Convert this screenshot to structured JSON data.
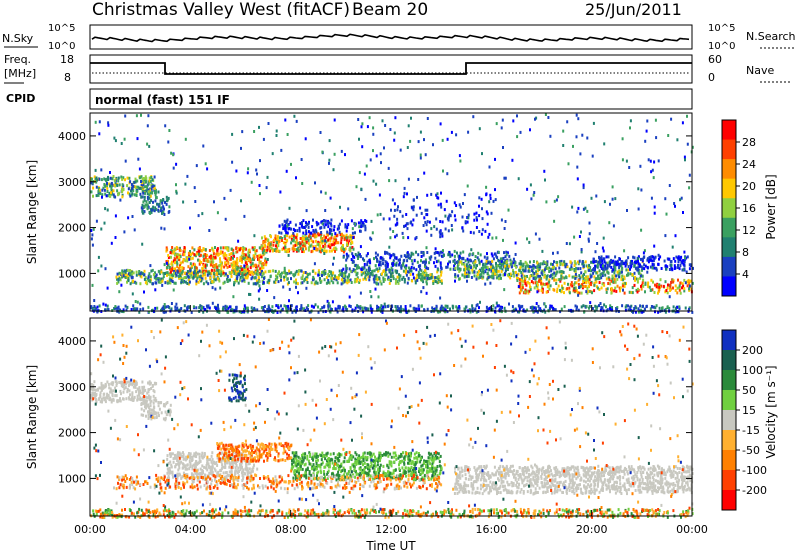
{
  "header": {
    "title": "Christmas Valley West (fitACF)",
    "beam": "Beam 20",
    "date": "25/Jun/2011"
  },
  "top_panels": {
    "nsky_label": "N.Sky",
    "nsky_ticks": [
      "10^5",
      "10^0"
    ],
    "nsearch_label": "N.Search",
    "nsearch_ticks": [
      "10^5",
      "10^0"
    ],
    "freq_label_1": "Freq.",
    "freq_label_2": "[MHz]",
    "freq_ticks": [
      "18",
      "8"
    ],
    "nave_label": "Nave",
    "nave_ticks": [
      "60",
      "0"
    ],
    "cpid_label": "CPID",
    "cpid_text": "normal (fast) 151 IF"
  },
  "chart_data": [
    {
      "type": "heatmap",
      "name": "power",
      "ylabel": "Slant Range [km]",
      "xlabel": "",
      "ylim": [
        180,
        4500
      ],
      "yticks": [
        "4000",
        "3000",
        "2000",
        "1000"
      ],
      "colorbar_label": "Power [dB]",
      "colorbar_ticks": [
        "28",
        "24",
        "20",
        "16",
        "12",
        "8",
        "4"
      ],
      "colorbar_colors": [
        "#ff0000",
        "#ff4000",
        "#ff8c00",
        "#ffc800",
        "#90d040",
        "#3aa060",
        "#208070",
        "#1a40c0",
        "#0000ff"
      ]
    },
    {
      "type": "heatmap",
      "name": "velocity",
      "ylabel": "Slant Range [km]",
      "xlabel": "Time UT",
      "ylim": [
        180,
        4500
      ],
      "yticks": [
        "4000",
        "3000",
        "2000",
        "1000"
      ],
      "xticks": [
        "00:00",
        "04:00",
        "08:00",
        "12:00",
        "16:00",
        "20:00",
        "00:00"
      ],
      "colorbar_label": "Velocity [m s⁻¹]",
      "colorbar_ticks": [
        "200",
        "100",
        "50",
        "15",
        "-15",
        "-50",
        "-100",
        "-200"
      ],
      "colorbar_colors": [
        "#1030c0",
        "#1a6050",
        "#2a8a3a",
        "#70d040",
        "#c8c8c0",
        "#ffb030",
        "#ff8000",
        "#ff4000",
        "#ff0000"
      ]
    }
  ]
}
